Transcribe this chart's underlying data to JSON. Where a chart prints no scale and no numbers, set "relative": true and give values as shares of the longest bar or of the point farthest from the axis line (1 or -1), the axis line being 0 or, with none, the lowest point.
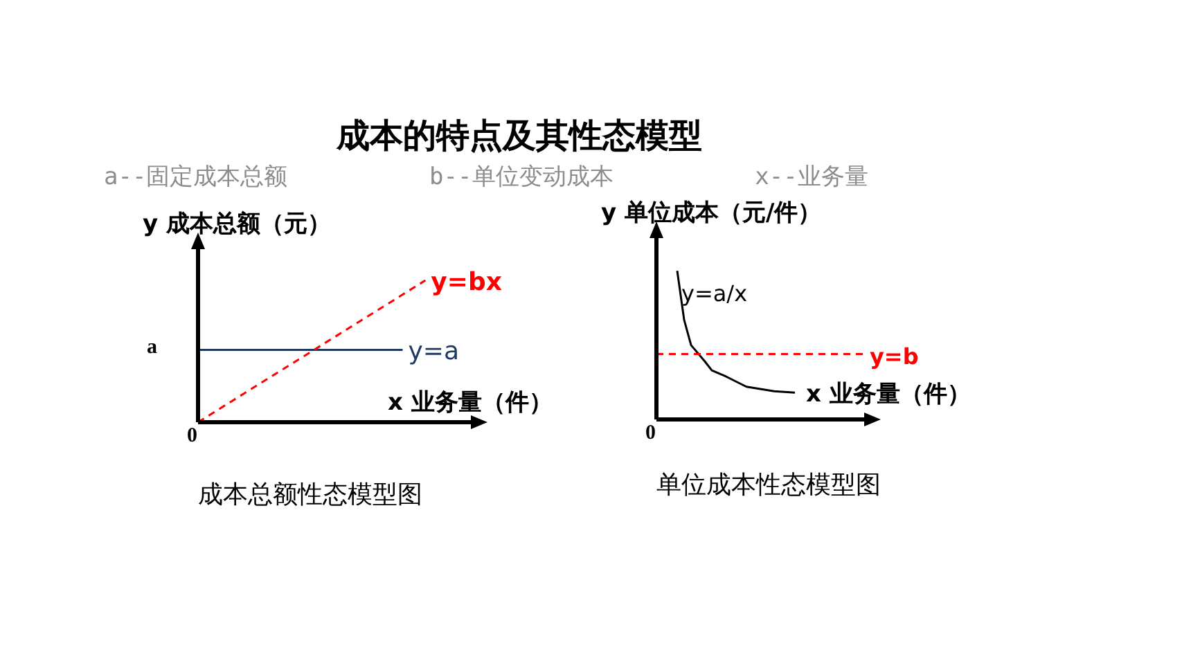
{
  "chart_data": [
    {
      "type": "line",
      "title": "成本的特点及其性态模型",
      "subtitle": "a--固定成本总额          b--单位变动成本          x--业务量",
      "relative": true,
      "ylabel": "y 成本总额（元）",
      "xlabel": "x 业务量（件）",
      "categories": [
        null,
        null,
        null,
        null,
        null,
        null,
        null,
        null,
        null,
        null,
        null,
        null,
        null
      ],
      "series": [
        {
          "name": "y=a",
          "color": "#1f3864",
          "line_style": "solid",
          "values": [
            0.51,
            0.51,
            0.51,
            0.51,
            0.51,
            0.51,
            0.51,
            0.51,
            0.51,
            0.51,
            null,
            null,
            null
          ]
        },
        {
          "name": "y=bx",
          "color": "#ff0000",
          "line_style": "dashed",
          "values": [
            0,
            0.1,
            0.2,
            0.3,
            0.4,
            0.5,
            0.6,
            0.7,
            0.8,
            0.9,
            1,
            null,
            null
          ]
        }
      ],
      "annotations": [
        "a",
        "0",
        "成本总额性态模型图"
      ]
    },
    {
      "type": "line",
      "relative": true,
      "ylabel": "y 单位成本（元/件）",
      "xlabel": "x 业务量（件）",
      "categories": [
        null,
        null,
        null,
        null,
        null,
        null,
        null,
        null,
        null,
        null,
        null,
        null,
        null,
        null,
        null,
        null,
        null,
        null,
        null,
        null,
        null,
        null,
        null,
        null,
        null,
        null,
        null,
        null,
        null,
        null,
        null
      ],
      "series": [
        {
          "name": "y=a/x",
          "color": "#000000",
          "line_style": "solid",
          "values": [
            null,
            null,
            null,
            1,
            0.67,
            0.5,
            null,
            0.39,
            0.33,
            null,
            0.29,
            null,
            null,
            0.22,
            null,
            null,
            null,
            0.19,
            null,
            null,
            0.18,
            null,
            null,
            null,
            null,
            null,
            null,
            null,
            null,
            null,
            null
          ]
        },
        {
          "name": "y=b",
          "color": "#ff0000",
          "line_style": "dashed",
          "values": [
            0.44,
            0.44,
            0.44,
            0.44,
            0.44,
            0.44,
            0.44,
            0.44,
            0.44,
            0.44,
            0.44,
            0.44,
            0.44,
            0.44,
            0.44,
            0.44,
            0.44,
            0.44,
            0.44,
            0.44,
            0.44,
            0.44,
            0.44,
            0.44,
            0.44,
            0.44,
            0.44,
            0.44,
            0.44,
            0.44,
            0.44
          ]
        }
      ],
      "annotations": [
        "0",
        "单位成本性态模型图"
      ]
    }
  ]
}
